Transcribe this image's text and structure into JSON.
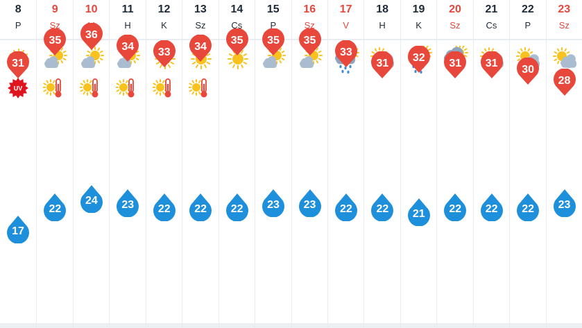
{
  "forecast": {
    "days": [
      {
        "date": "8",
        "weekday": "P",
        "weekend": false,
        "icon": "sun-icon",
        "warning": "uv-warning-icon",
        "max": "31",
        "min": "17"
      },
      {
        "date": "9",
        "weekday": "Sz",
        "weekend": true,
        "icon": "cloud-sun-icon",
        "warning": "heat-warning-icon",
        "max": "35",
        "min": "22"
      },
      {
        "date": "10",
        "weekday": "V",
        "weekend": true,
        "icon": "cloud-sun-icon",
        "warning": "heat-warning-icon",
        "max": "36",
        "min": "24"
      },
      {
        "date": "11",
        "weekday": "H",
        "weekend": false,
        "icon": "cloud-sun-icon",
        "warning": "heat-warning-icon",
        "max": "34",
        "min": "23"
      },
      {
        "date": "12",
        "weekday": "K",
        "weekend": false,
        "icon": "sun-icon",
        "warning": "heat-warning-icon",
        "max": "33",
        "min": "22"
      },
      {
        "date": "13",
        "weekday": "Sz",
        "weekend": false,
        "icon": "sun-icon",
        "warning": "heat-warning-icon",
        "max": "34",
        "min": "22"
      },
      {
        "date": "14",
        "weekday": "Cs",
        "weekend": false,
        "icon": "sun-icon",
        "warning": "",
        "max": "35",
        "min": "22"
      },
      {
        "date": "15",
        "weekday": "P",
        "weekend": false,
        "icon": "cloud-sun-icon",
        "warning": "",
        "max": "35",
        "min": "23"
      },
      {
        "date": "16",
        "weekday": "Sz",
        "weekend": true,
        "icon": "cloud-sun-icon",
        "warning": "",
        "max": "35",
        "min": "23"
      },
      {
        "date": "17",
        "weekday": "V",
        "weekend": true,
        "icon": "rain-cloud-sun-icon",
        "warning": "",
        "max": "33",
        "min": "22"
      },
      {
        "date": "18",
        "weekday": "H",
        "weekend": false,
        "icon": "partly-cloudy-icon",
        "warning": "",
        "max": "31",
        "min": "22"
      },
      {
        "date": "19",
        "weekday": "K",
        "weekend": false,
        "icon": "rain-cloud-sun-icon",
        "warning": "",
        "max": "32",
        "min": "21"
      },
      {
        "date": "20",
        "weekday": "Sz",
        "weekend": true,
        "icon": "rain-cloud-sun-icon",
        "warning": "",
        "max": "31",
        "min": "22"
      },
      {
        "date": "21",
        "weekday": "Cs",
        "weekend": false,
        "icon": "partly-cloudy-icon",
        "warning": "",
        "max": "31",
        "min": "22"
      },
      {
        "date": "22",
        "weekday": "P",
        "weekend": false,
        "icon": "partly-cloudy-icon",
        "warning": "",
        "max": "30",
        "min": "22"
      },
      {
        "date": "23",
        "weekday": "Sz",
        "weekend": true,
        "icon": "partly-cloudy-icon",
        "warning": "",
        "max": "28",
        "min": "23"
      }
    ],
    "uv_label": "UV",
    "colors": {
      "max_pin": "#e8473c",
      "min_pin": "#1d8fdb",
      "weekend_text": "#e8463c",
      "weekday_text": "#1e2a38",
      "sun": "#f9c31f",
      "cloud": "#a9bcd0",
      "rain": "#3a8fd6",
      "thermometer": "#e8473c"
    }
  }
}
